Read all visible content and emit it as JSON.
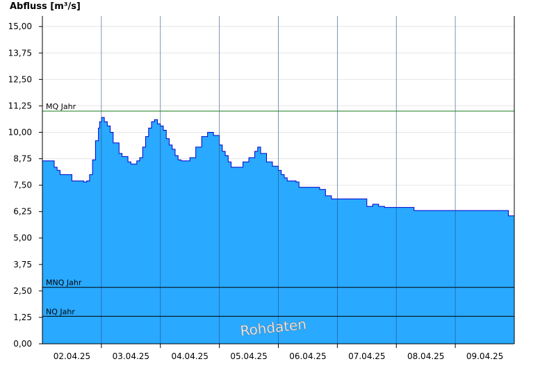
{
  "chart_data": {
    "type": "area",
    "ylabel": "Abfluss [m³/s]",
    "ylim": [
      0,
      15.5
    ],
    "grid": true,
    "y_ticks": [
      "0,00",
      "1,25",
      "2,50",
      "3,75",
      "5,00",
      "6,25",
      "7,50",
      "8,75",
      "10,00",
      "11,25",
      "12,50",
      "13,75",
      "15,00"
    ],
    "y_tick_values": [
      0,
      1.25,
      2.5,
      3.75,
      5,
      6.25,
      7.5,
      8.75,
      10,
      11.25,
      12.5,
      13.75,
      15
    ],
    "x_ticks": [
      "02.04.25",
      "03.04.25",
      "04.04.25",
      "05.04.25",
      "06.04.25",
      "07.04.25",
      "08.04.25",
      "09.04.25"
    ],
    "x_range_days": [
      0,
      8
    ],
    "reference_lines": [
      {
        "label": "MQ Jahr",
        "value": 11.0,
        "color": "#1a7a1a"
      },
      {
        "label": "MNQ Jahr",
        "value": 2.67,
        "color": "#000000"
      },
      {
        "label": "NQ Jahr",
        "value": 1.3,
        "color": "#000000"
      }
    ],
    "watermark": "Rohdaten",
    "colors": {
      "fill": "#29a9ff",
      "line": "#0000cc",
      "grid": "#e6e6e6",
      "daysep": "#2a4a80"
    },
    "series": [
      {
        "values_x": [
          0,
          0.1,
          0.2,
          0.25,
          0.3,
          0.4,
          0.45,
          0.5,
          0.6,
          0.65,
          0.7,
          0.75,
          0.8,
          0.85,
          0.9,
          0.95,
          0.97,
          1.0,
          1.05,
          1.1,
          1.15,
          1.2,
          1.3,
          1.35,
          1.38,
          1.4,
          1.45,
          1.5,
          1.6,
          1.65,
          1.7,
          1.75,
          1.8,
          1.85,
          1.9,
          1.95,
          1.97,
          2.0,
          2.05,
          2.1,
          2.15,
          2.2,
          2.25,
          2.3,
          2.35,
          2.4,
          2.5,
          2.6,
          2.7,
          2.8,
          2.9,
          3.0,
          3.05,
          3.1,
          3.15,
          3.2,
          3.3,
          3.35,
          3.4,
          3.5,
          3.6,
          3.65,
          3.7,
          3.8,
          3.9,
          4.0,
          4.05,
          4.1,
          4.15,
          4.2,
          4.3,
          4.35,
          4.4,
          4.5,
          4.6,
          4.7,
          4.8,
          4.9,
          5.0,
          5.1,
          5.2,
          5.3,
          5.4,
          5.5,
          5.6,
          5.7,
          5.8,
          5.9,
          6.0,
          6.1,
          6.2,
          6.3,
          6.4,
          6.5,
          6.6,
          6.7,
          6.8,
          6.9,
          7.0,
          7.1,
          7.2,
          7.3,
          7.4,
          7.5,
          7.6,
          7.7,
          7.8,
          7.9,
          8.0
        ],
        "values_y": [
          8.65,
          8.65,
          8.35,
          8.2,
          8.0,
          8.0,
          8.0,
          7.7,
          7.7,
          7.7,
          7.65,
          7.7,
          8.0,
          8.7,
          9.6,
          10.2,
          10.5,
          10.7,
          10.5,
          10.3,
          10.0,
          9.5,
          9.0,
          8.85,
          8.85,
          8.85,
          8.6,
          8.5,
          8.65,
          8.8,
          9.3,
          9.8,
          10.2,
          10.5,
          10.6,
          10.4,
          10.4,
          10.3,
          10.1,
          9.7,
          9.4,
          9.2,
          8.9,
          8.7,
          8.65,
          8.65,
          8.8,
          9.3,
          9.8,
          10.0,
          9.85,
          9.4,
          9.1,
          8.9,
          8.6,
          8.35,
          8.35,
          8.35,
          8.6,
          8.8,
          9.1,
          9.3,
          9.0,
          8.6,
          8.4,
          8.2,
          8.0,
          7.85,
          7.7,
          7.7,
          7.65,
          7.4,
          7.4,
          7.4,
          7.4,
          7.3,
          7.0,
          6.85,
          6.85,
          6.85,
          6.85,
          6.85,
          6.85,
          6.5,
          6.6,
          6.5,
          6.45,
          6.45,
          6.45,
          6.45,
          6.45,
          6.3,
          6.3,
          6.3,
          6.3,
          6.3,
          6.3,
          6.3,
          6.3,
          6.3,
          6.3,
          6.3,
          6.3,
          6.3,
          6.3,
          6.3,
          6.3,
          6.05,
          6.05
        ]
      }
    ]
  }
}
